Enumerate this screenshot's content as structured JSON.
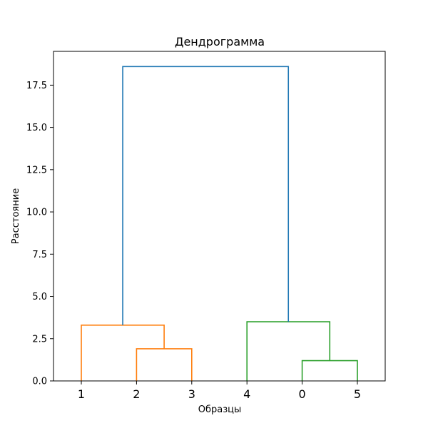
{
  "chart_data": {
    "type": "dendrogram",
    "title": "Дендрограмма",
    "xlabel": "Образцы",
    "ylabel": "Расстояние",
    "leaves": [
      "1",
      "2",
      "3",
      "4",
      "0",
      "5"
    ],
    "ylim": [
      0,
      19.5
    ],
    "yticks": [
      0.0,
      2.5,
      5.0,
      7.5,
      10.0,
      12.5,
      15.0,
      17.5
    ],
    "ytick_labels": [
      "0.0",
      "2.5",
      "5.0",
      "7.5",
      "10.0",
      "12.5",
      "15.0",
      "17.5"
    ],
    "colors": {
      "orange": "#ff7f0e",
      "green": "#2ca02c",
      "blue": "#1f77b4"
    },
    "links": [
      {
        "name": "merge-2-3",
        "left": 1,
        "right": 2,
        "left_height": 0,
        "right_height": 0,
        "height": 1.9,
        "color": "orange"
      },
      {
        "name": "merge-0-5",
        "left": 4,
        "right": 5,
        "left_height": 0,
        "right_height": 0,
        "height": 1.2,
        "color": "green"
      },
      {
        "name": "merge-1-23",
        "left": 0,
        "right": 1.5,
        "left_height": 0,
        "right_height": 1.9,
        "height": 3.3,
        "color": "orange"
      },
      {
        "name": "merge-4-05",
        "left": 3,
        "right": 4.5,
        "left_height": 0,
        "right_height": 1.2,
        "height": 3.5,
        "color": "green"
      },
      {
        "name": "merge-root",
        "left": 0.75,
        "right": 3.75,
        "left_height": 3.3,
        "right_height": 3.5,
        "height": 18.6,
        "color": "blue"
      }
    ]
  }
}
